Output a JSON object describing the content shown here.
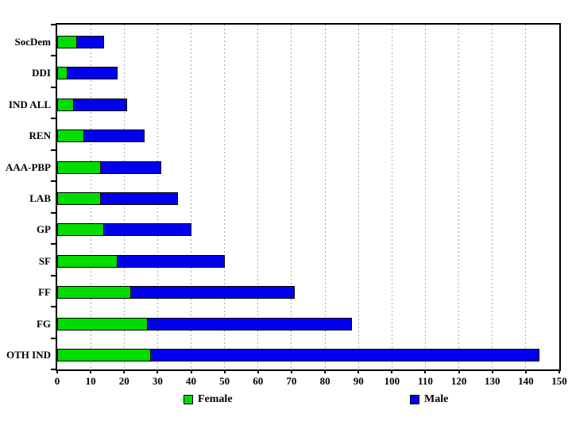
{
  "chart_data": {
    "type": "bar",
    "orientation": "horizontal",
    "stacked": true,
    "title": "",
    "xlabel": "",
    "ylabel": "",
    "categories": [
      "SocDem",
      "DDI",
      "IND ALL",
      "REN",
      "AAA-PBP",
      "LAB",
      "GP",
      "SF",
      "FF",
      "FG",
      "OTH IND"
    ],
    "series": [
      {
        "name": "Female",
        "color": "#00dc00",
        "values": [
          6,
          3,
          5,
          8,
          13,
          13,
          14,
          18,
          22,
          27,
          28
        ]
      },
      {
        "name": "Male",
        "color": "#0000ee",
        "values": [
          8,
          15,
          16,
          18,
          18,
          23,
          26,
          32,
          49,
          61,
          116
        ]
      }
    ],
    "stack_totals": [
      14,
      18,
      21,
      26,
      31,
      36,
      40,
      50,
      71,
      88,
      144
    ],
    "xlim": [
      0,
      150
    ],
    "xticks": [
      0,
      10,
      20,
      30,
      40,
      50,
      60,
      70,
      80,
      90,
      100,
      110,
      120,
      130,
      140,
      150
    ],
    "grid": "vertical-dashed",
    "gridline_color": "#a8a8a8",
    "frame_color": "#000000",
    "background_color": "#ffffff",
    "legend_position": "bottom"
  }
}
